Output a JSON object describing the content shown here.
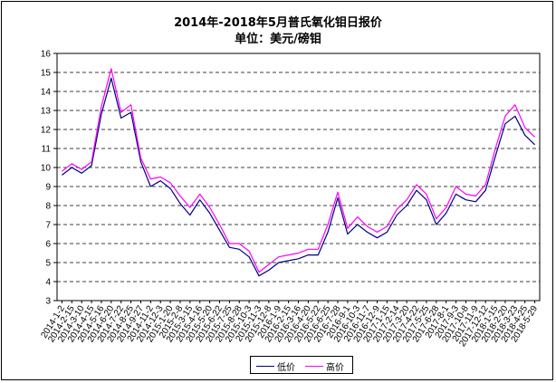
{
  "chart_data": {
    "type": "line",
    "title": "2014年-2018年5月普氏氧化钼日报价",
    "subtitle": "单位：美元/磅钼",
    "xlabel": "",
    "ylabel": "",
    "ylim": [
      3,
      16
    ],
    "yticks": [
      3,
      4,
      5,
      6,
      7,
      8,
      9,
      10,
      11,
      12,
      13,
      14,
      15,
      16
    ],
    "grid": "horizontal dashed",
    "legend_position": "bottom-center",
    "x": [
      "2014-1-2",
      "2014-2-15",
      "2014-3-10",
      "2014-4-15",
      "2014-5-16",
      "2014-6-20",
      "2014-7-22",
      "2014-8-25",
      "2014-9-27",
      "2014-11-2",
      "2014-12-3",
      "2015-1-20",
      "2015-2-8",
      "2015-3-15",
      "2015-4-16",
      "2015-5-20",
      "2015-6-22",
      "2015-7-25",
      "2015-8-28",
      "2015-10-3",
      "2015-11-3",
      "2015-12-8",
      "2016-1-9",
      "2016-2-15",
      "2016-3-16",
      "2016-4-20",
      "2016-5-22",
      "2016-6-25",
      "2016-7-28",
      "2016-9-1",
      "2016-10-3",
      "2016-11-7",
      "2016-12-9",
      "2017-1-15",
      "2017-2-14",
      "2017-3-20",
      "2017-4-22",
      "2017-5-25",
      "2017-6-28",
      "2017-8-1",
      "2017-9-3",
      "2017-10-8",
      "2017-11-9",
      "2017-12-12",
      "2018-1-15",
      "2018-2-20",
      "2018-3-23",
      "2018-4-25",
      "2018-5-29"
    ],
    "series": [
      {
        "name": "低价",
        "color": "#000080",
        "values": [
          9.6,
          10.0,
          9.7,
          10.1,
          12.8,
          14.7,
          12.6,
          12.9,
          10.3,
          9.0,
          9.3,
          8.9,
          8.1,
          7.5,
          8.3,
          7.6,
          6.7,
          5.8,
          5.7,
          5.3,
          4.3,
          4.6,
          5.0,
          5.1,
          5.2,
          5.4,
          5.4,
          6.6,
          8.4,
          6.5,
          7.0,
          6.6,
          6.3,
          6.6,
          7.5,
          8.0,
          8.8,
          8.3,
          7.0,
          7.6,
          8.6,
          8.3,
          8.2,
          8.8,
          10.6,
          12.3,
          12.7,
          11.7,
          11.2
        ]
      },
      {
        "name": "高价",
        "color": "#ff00ff",
        "values": [
          9.8,
          10.2,
          9.9,
          10.3,
          13.2,
          15.2,
          12.9,
          13.3,
          10.5,
          9.4,
          9.5,
          9.2,
          8.5,
          7.9,
          8.6,
          7.9,
          7.0,
          6.0,
          6.0,
          5.6,
          4.5,
          4.9,
          5.3,
          5.4,
          5.5,
          5.7,
          5.7,
          7.0,
          8.7,
          6.8,
          7.4,
          6.9,
          6.6,
          6.9,
          7.8,
          8.3,
          9.1,
          8.6,
          7.3,
          7.9,
          9.0,
          8.6,
          8.5,
          9.1,
          11.0,
          12.7,
          13.3,
          12.1,
          11.6
        ]
      }
    ]
  },
  "legend": {
    "low_label": "低价",
    "high_label": "高价"
  }
}
